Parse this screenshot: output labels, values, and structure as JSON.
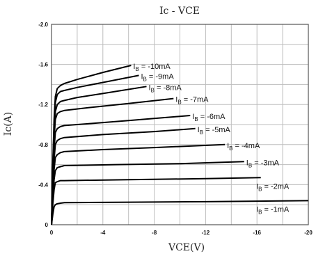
{
  "chart_data": {
    "type": "line",
    "title": "Ic  -  VCE",
    "xlabel": "VCE(V)",
    "ylabel": "Ic(A)",
    "xlim": [
      0,
      -20
    ],
    "ylim": [
      0,
      -2.0
    ],
    "grid": true,
    "x_ticks": [
      "0",
      "-4",
      "-8",
      "-12",
      "-16",
      "-20"
    ],
    "y_ticks": [
      "-2.0",
      "-1.6",
      "-1.2",
      "-0.8",
      "-0.4",
      "0"
    ],
    "series": [
      {
        "name": "IB = -10mA",
        "label_base": "I",
        "label_sub": "B",
        "label_rest": " = -10mA",
        "x": [
          0,
          -0.1,
          -0.2,
          -0.3,
          -0.45,
          -0.7,
          -1,
          -2,
          -4,
          -6.2
        ],
        "y": [
          0,
          -0.6,
          -1.05,
          -1.28,
          -1.36,
          -1.39,
          -1.41,
          -1.45,
          -1.52,
          -1.59
        ]
      },
      {
        "name": "IB = -9mA",
        "label_base": "I",
        "label_sub": "B",
        "label_rest": " = -9mA",
        "x": [
          0,
          -0.1,
          -0.2,
          -0.3,
          -0.45,
          -0.7,
          -1,
          -2,
          -4,
          -6.8
        ],
        "y": [
          0,
          -0.55,
          -1.0,
          -1.22,
          -1.3,
          -1.33,
          -1.34,
          -1.37,
          -1.42,
          -1.49
        ]
      },
      {
        "name": "IB = -8mA",
        "label_base": "I",
        "label_sub": "B",
        "label_rest": " = -8mA",
        "x": [
          0,
          -0.1,
          -0.2,
          -0.3,
          -0.45,
          -0.7,
          -1,
          -2,
          -4,
          -7.4
        ],
        "y": [
          0,
          -0.5,
          -0.95,
          -1.13,
          -1.2,
          -1.23,
          -1.24,
          -1.27,
          -1.31,
          -1.38
        ]
      },
      {
        "name": "IB = -7mA",
        "label_base": "I",
        "label_sub": "B",
        "label_rest": " = -7mA",
        "x": [
          0,
          -0.1,
          -0.2,
          -0.3,
          -0.45,
          -0.7,
          -1,
          -3,
          -6,
          -9.5
        ],
        "y": [
          0,
          -0.45,
          -0.85,
          -1.05,
          -1.11,
          -1.13,
          -1.14,
          -1.17,
          -1.21,
          -1.26
        ]
      },
      {
        "name": "IB = -6mA",
        "label_base": "I",
        "label_sub": "B",
        "label_rest": " = -6mA",
        "x": [
          0,
          -0.1,
          -0.2,
          -0.3,
          -0.45,
          -0.7,
          -1,
          -3,
          -6,
          -10.8
        ],
        "y": [
          0,
          -0.4,
          -0.75,
          -0.92,
          -0.96,
          -0.98,
          -0.99,
          -1.01,
          -1.04,
          -1.09
        ]
      },
      {
        "name": "IB = -5mA",
        "label_base": "I",
        "label_sub": "B",
        "label_rest": " = -5mA",
        "x": [
          0,
          -0.1,
          -0.2,
          -0.3,
          -0.45,
          -0.7,
          -1,
          -4,
          -8,
          -11.2
        ],
        "y": [
          0,
          -0.35,
          -0.65,
          -0.8,
          -0.84,
          -0.86,
          -0.87,
          -0.9,
          -0.93,
          -0.96
        ]
      },
      {
        "name": "IB = -4mA",
        "label_base": "I",
        "label_sub": "B",
        "label_rest": " = -4mA",
        "x": [
          0,
          -0.1,
          -0.2,
          -0.3,
          -0.45,
          -0.7,
          -1,
          -4,
          -8,
          -13.5
        ],
        "y": [
          0,
          -0.3,
          -0.55,
          -0.67,
          -0.7,
          -0.72,
          -0.73,
          -0.75,
          -0.77,
          -0.8
        ]
      },
      {
        "name": "IB = -3mA",
        "label_base": "I",
        "label_sub": "B",
        "label_rest": " = -3mA",
        "x": [
          0,
          -0.1,
          -0.2,
          -0.3,
          -0.45,
          -0.7,
          -1,
          -5,
          -10,
          -15
        ],
        "y": [
          0,
          -0.25,
          -0.45,
          -0.54,
          -0.57,
          -0.58,
          -0.59,
          -0.6,
          -0.61,
          -0.63
        ]
      },
      {
        "name": "IB = -2mA",
        "label_base": "I",
        "label_sub": "B",
        "label_rest": " = -2mA",
        "x": [
          0,
          -0.1,
          -0.2,
          -0.3,
          -0.45,
          -0.7,
          -1,
          -6,
          -12,
          -16.3
        ],
        "y": [
          0,
          -0.2,
          -0.35,
          -0.42,
          -0.43,
          -0.44,
          -0.44,
          -0.45,
          -0.46,
          -0.47
        ]
      },
      {
        "name": "IB = -1mA",
        "label_base": "I",
        "label_sub": "B",
        "label_rest": " = -1mA",
        "x": [
          0,
          -0.1,
          -0.2,
          -0.3,
          -0.45,
          -0.7,
          -1,
          -6,
          -12,
          -20
        ],
        "y": [
          0,
          -0.1,
          -0.18,
          -0.2,
          -0.21,
          -0.215,
          -0.22,
          -0.225,
          -0.23,
          -0.24
        ]
      }
    ]
  }
}
